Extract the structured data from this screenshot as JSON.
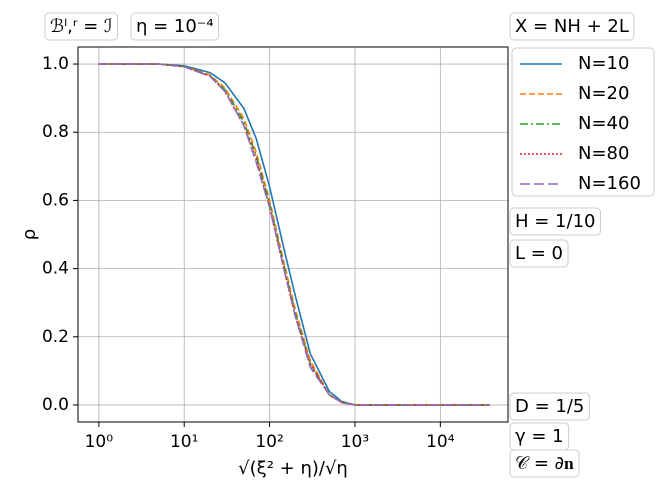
{
  "chart_data": {
    "type": "line",
    "ylabel": "ρ",
    "xlabel": "√(ξ² + η)/√η",
    "annotations": [
      "ℬˡ,ʳ = ℐ",
      "η = 10⁻⁴",
      "X = NH + 2L",
      "H = 1/10",
      "L = 0",
      "D = 1/5",
      "γ = 1",
      "𝒞 = ∂𝐧"
    ],
    "x": [
      1,
      2,
      5,
      10,
      20,
      30,
      50,
      70,
      100,
      150,
      200,
      300,
      500,
      700,
      1000,
      2000,
      5000,
      10000,
      38000
    ],
    "series": [
      {
        "name": "N=10",
        "color": "#1f77b4",
        "dash": "solid",
        "values": [
          1.0,
          1.0,
          1.0,
          0.995,
          0.975,
          0.945,
          0.87,
          0.78,
          0.64,
          0.45,
          0.32,
          0.15,
          0.04,
          0.01,
          0.0,
          0.0,
          0.0,
          0.0,
          0.0
        ]
      },
      {
        "name": "N=20",
        "color": "#ff7f0e",
        "dash": "dashed",
        "values": [
          1.0,
          1.0,
          1.0,
          0.993,
          0.968,
          0.93,
          0.84,
          0.74,
          0.6,
          0.41,
          0.28,
          0.13,
          0.03,
          0.008,
          0.0,
          0.0,
          0.0,
          0.0,
          0.0
        ]
      },
      {
        "name": "N=40",
        "color": "#2ca02c",
        "dash": "dashdot",
        "values": [
          1.0,
          1.0,
          1.0,
          0.993,
          0.966,
          0.925,
          0.83,
          0.73,
          0.59,
          0.4,
          0.27,
          0.12,
          0.03,
          0.007,
          0.0,
          0.0,
          0.0,
          0.0,
          0.0
        ]
      },
      {
        "name": "N=80",
        "color": "#d62728",
        "dash": "dotted",
        "values": [
          1.0,
          1.0,
          1.0,
          0.992,
          0.965,
          0.92,
          0.82,
          0.72,
          0.58,
          0.39,
          0.26,
          0.12,
          0.03,
          0.007,
          0.0,
          0.0,
          0.0,
          0.0,
          0.0
        ]
      },
      {
        "name": "N=160",
        "color": "#9467bd",
        "dash": "longdash",
        "values": [
          1.0,
          1.0,
          1.0,
          0.992,
          0.964,
          0.92,
          0.82,
          0.71,
          0.58,
          0.39,
          0.26,
          0.11,
          0.03,
          0.007,
          0.0,
          0.0,
          0.0,
          0.0,
          0.0
        ]
      }
    ],
    "xscale": "log",
    "xlim": [
      0.57,
      62000
    ],
    "ylim": [
      -0.05,
      1.05
    ],
    "xticks": [
      {
        "value": 1,
        "label": "10⁰"
      },
      {
        "value": 10,
        "label": "10¹"
      },
      {
        "value": 100,
        "label": "10²"
      },
      {
        "value": 1000,
        "label": "10³"
      },
      {
        "value": 10000,
        "label": "10⁴"
      }
    ],
    "yticks": [
      {
        "value": 0,
        "label": "0.0"
      },
      0.2,
      0.4,
      0.6,
      0.8,
      {
        "value": 1,
        "label": "1.0"
      }
    ],
    "grid": true,
    "legend": "right"
  }
}
